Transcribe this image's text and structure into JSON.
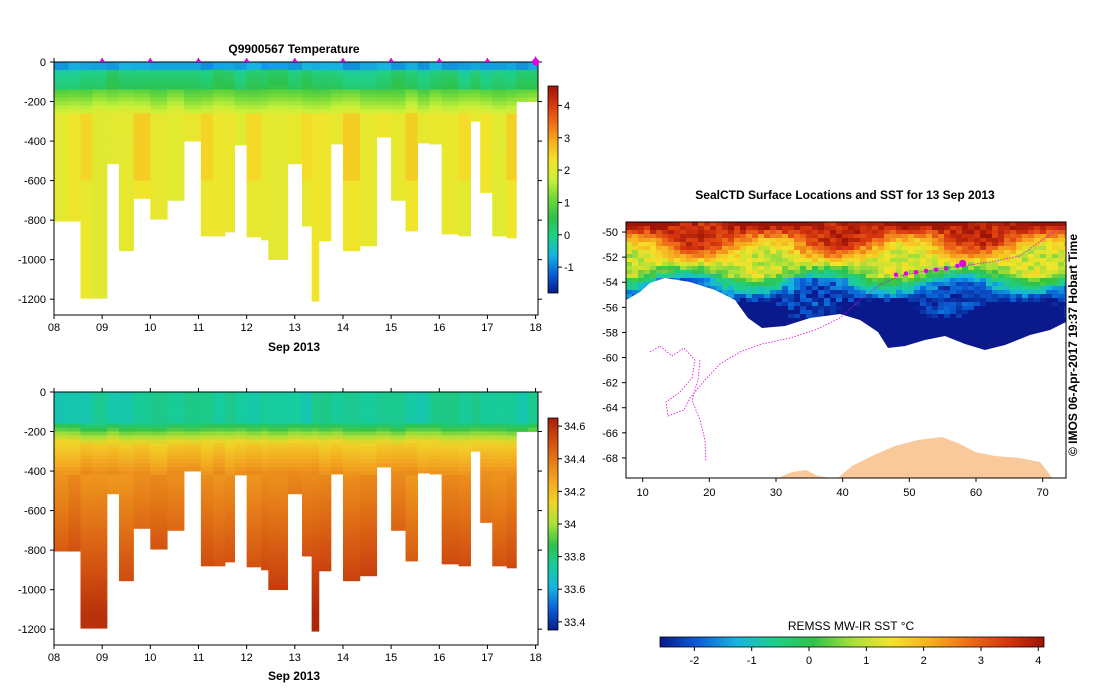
{
  "colors": {
    "temp_ramp": [
      "#0a1a8c",
      "#0b5fd6",
      "#16b4e0",
      "#1fd08a",
      "#2fc24a",
      "#6fd83a",
      "#c8f03a",
      "#f3e42a",
      "#f6b21f",
      "#ee7019",
      "#d8380f",
      "#9e1405"
    ],
    "sal_ramp": [
      "#0a1a8c",
      "#0b5fd6",
      "#16b4e0",
      "#16cca0",
      "#2fc24a",
      "#a8e23a",
      "#f0d428",
      "#f3a821",
      "#e47a18",
      "#cf4a10",
      "#a51d06"
    ],
    "sst_ramp": [
      "#0a1a8c",
      "#0b5fd6",
      "#16b4e0",
      "#1fd08a",
      "#2fc24a",
      "#a6e03a",
      "#f3e42a",
      "#f6b21f",
      "#ee7019",
      "#d8380f",
      "#9e1405"
    ],
    "track": "#e000e0",
    "land": "#f9c89b"
  },
  "chart_data": [
    {
      "type": "heatmap",
      "title": "Q9900567  Temperature",
      "xlabel": "Sep 2013",
      "ylabel": "",
      "x_ticks": [
        "08",
        "09",
        "10",
        "11",
        "12",
        "13",
        "14",
        "15",
        "16",
        "17",
        "18"
      ],
      "y_ticks": [
        "0",
        "-200",
        "-400",
        "-600",
        "-800",
        "-1000",
        "-1200"
      ],
      "xlim": [
        8,
        18.05
      ],
      "ylim": [
        -1280,
        0
      ],
      "colorbar": {
        "ticks": [
          "-1",
          "0",
          "1",
          "2",
          "3",
          "4"
        ],
        "range": [
          -1.8,
          4.6
        ]
      },
      "profile_markers": [
        9.0,
        10.0,
        11.0,
        12.0,
        13.0,
        14.0,
        15.0,
        16.0,
        17.0,
        18.0
      ],
      "profiles": [
        {
          "t0": 8.0,
          "t1": 8.3,
          "depth": 805
        },
        {
          "t0": 8.3,
          "t1": 8.55,
          "depth": 805
        },
        {
          "t0": 8.55,
          "t1": 8.8,
          "depth": 1195
        },
        {
          "t0": 8.8,
          "t1": 9.1,
          "depth": 1195
        },
        {
          "t0": 9.1,
          "t1": 9.35,
          "depth": 515
        },
        {
          "t0": 9.35,
          "t1": 9.65,
          "depth": 955
        },
        {
          "t0": 9.65,
          "t1": 10.0,
          "depth": 690
        },
        {
          "t0": 10.0,
          "t1": 10.35,
          "depth": 795
        },
        {
          "t0": 10.35,
          "t1": 10.7,
          "depth": 700
        },
        {
          "t0": 10.7,
          "t1": 11.05,
          "depth": 400
        },
        {
          "t0": 11.05,
          "t1": 11.3,
          "depth": 880
        },
        {
          "t0": 11.3,
          "t1": 11.55,
          "depth": 880
        },
        {
          "t0": 11.55,
          "t1": 11.75,
          "depth": 860
        },
        {
          "t0": 11.75,
          "t1": 12.0,
          "depth": 420
        },
        {
          "t0": 12.0,
          "t1": 12.3,
          "depth": 885
        },
        {
          "t0": 12.3,
          "t1": 12.45,
          "depth": 900
        },
        {
          "t0": 12.45,
          "t1": 12.85,
          "depth": 1000
        },
        {
          "t0": 12.85,
          "t1": 13.15,
          "depth": 515
        },
        {
          "t0": 13.15,
          "t1": 13.35,
          "depth": 830
        },
        {
          "t0": 13.35,
          "t1": 13.5,
          "depth": 1210
        },
        {
          "t0": 13.5,
          "t1": 13.75,
          "depth": 905
        },
        {
          "t0": 13.75,
          "t1": 14.0,
          "depth": 415
        },
        {
          "t0": 14.0,
          "t1": 14.35,
          "depth": 955
        },
        {
          "t0": 14.35,
          "t1": 14.7,
          "depth": 930
        },
        {
          "t0": 14.7,
          "t1": 15.0,
          "depth": 380
        },
        {
          "t0": 15.0,
          "t1": 15.3,
          "depth": 700
        },
        {
          "t0": 15.3,
          "t1": 15.55,
          "depth": 855
        },
        {
          "t0": 15.55,
          "t1": 15.8,
          "depth": 410
        },
        {
          "t0": 15.8,
          "t1": 16.05,
          "depth": 415
        },
        {
          "t0": 16.05,
          "t1": 16.4,
          "depth": 870
        },
        {
          "t0": 16.4,
          "t1": 16.65,
          "depth": 880
        },
        {
          "t0": 16.65,
          "t1": 16.85,
          "depth": 300
        },
        {
          "t0": 16.85,
          "t1": 17.1,
          "depth": 660
        },
        {
          "t0": 17.1,
          "t1": 17.4,
          "depth": 880
        },
        {
          "t0": 17.4,
          "t1": 17.6,
          "depth": 890
        },
        {
          "t0": 17.6,
          "t1": 17.85,
          "depth": 200
        },
        {
          "t0": 17.85,
          "t1": 18.05,
          "depth": 200
        }
      ]
    },
    {
      "type": "heatmap",
      "title": "",
      "xlabel": "Sep 2013",
      "ylabel": "",
      "x_ticks": [
        "08",
        "09",
        "10",
        "11",
        "12",
        "13",
        "14",
        "15",
        "16",
        "17",
        "18"
      ],
      "y_ticks": [
        "0",
        "-200",
        "-400",
        "-600",
        "-800",
        "-1000",
        "-1200"
      ],
      "xlim": [
        8,
        18.05
      ],
      "ylim": [
        -1280,
        0
      ],
      "colorbar": {
        "ticks": [
          "33.4",
          "33.6",
          "33.8",
          "34",
          "34.2",
          "34.4",
          "34.6"
        ],
        "range": [
          33.35,
          34.65
        ]
      }
    },
    {
      "type": "heatmap",
      "title": "SealCTD Surface Locations and SST for 13 Sep 2013",
      "xlabel": "",
      "ylabel": "",
      "x_ticks": [
        "10",
        "20",
        "30",
        "40",
        "50",
        "60",
        "70"
      ],
      "y_ticks": [
        "-50",
        "-52",
        "-54",
        "-56",
        "-58",
        "-60",
        "-62",
        "-64",
        "-66",
        "-68"
      ],
      "xlim": [
        7.5,
        73.5
      ],
      "ylim": [
        -69.6,
        -49.2
      ],
      "colorbar": {
        "label": "REMSS MW-IR SST °C",
        "ticks": [
          "-2",
          "-1",
          "0",
          "1",
          "2",
          "3",
          "4"
        ],
        "range": [
          -2.6,
          4.1
        ]
      },
      "track_points": [
        [
          48.0,
          -53.4
        ],
        [
          49.5,
          -53.3
        ],
        [
          51.0,
          -53.2
        ],
        [
          52.5,
          -53.1
        ],
        [
          54.0,
          -53.0
        ],
        [
          55.5,
          -52.9
        ],
        [
          57.2,
          -52.7
        ],
        [
          58.0,
          -52.5
        ]
      ],
      "latest_location": [
        58.0,
        -52.5
      ],
      "side_label": "© IMOS 06-Apr-2017 19:37 Hobart Time"
    }
  ]
}
